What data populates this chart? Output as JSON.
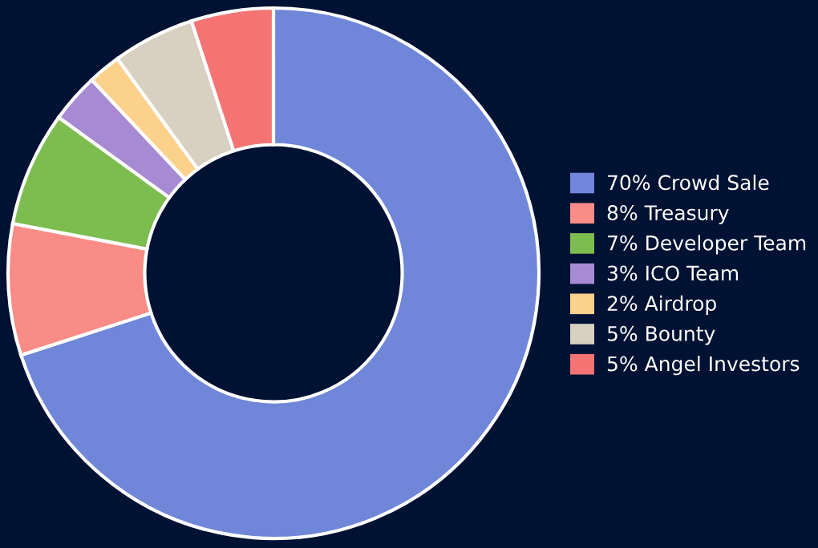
{
  "chart_data": {
    "type": "donut",
    "categories": [
      "70% Crowd Sale",
      "8% Treasury",
      "7% Developer Team",
      "3% ICO Team",
      "2% Airdrop",
      "5% Bounty",
      "5% Angel Investors"
    ],
    "values": [
      70,
      8,
      7,
      3,
      2,
      5,
      5
    ],
    "colors": [
      "#6f86d9",
      "#f98c86",
      "#7dbd4f",
      "#a78ad4",
      "#fcd18c",
      "#d8d0c0",
      "#f47474"
    ],
    "legend": "right"
  }
}
